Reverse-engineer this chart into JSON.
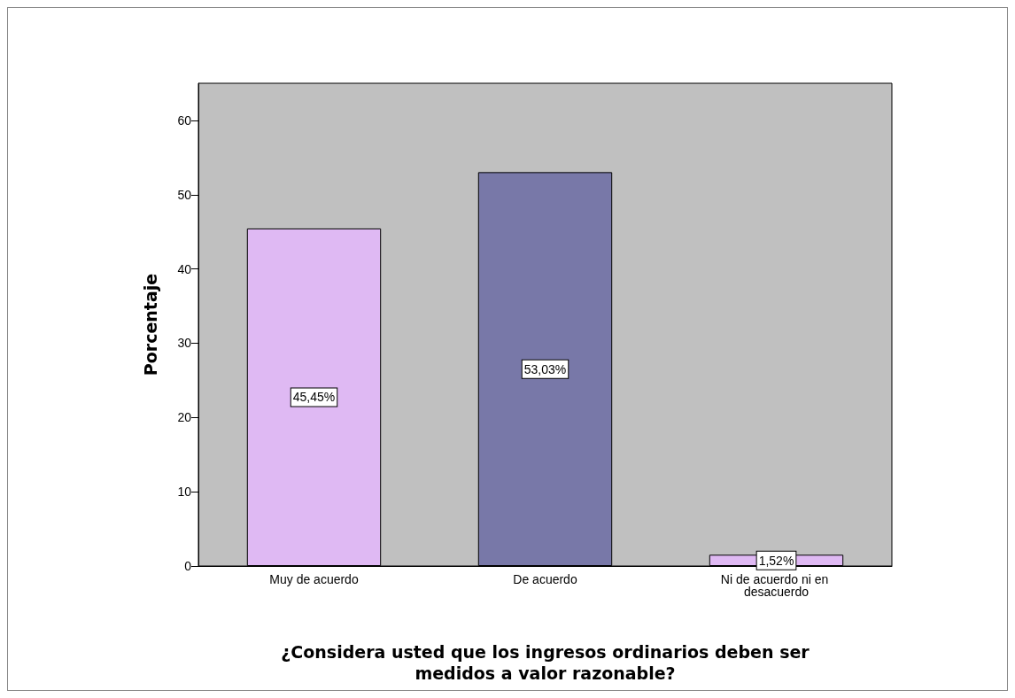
{
  "chart_data": {
    "type": "bar",
    "xlabel": "¿Considera usted que los ingresos ordinarios deben ser\nmedidos a valor razonable?",
    "ylabel": "Porcentaje",
    "categories": [
      "Muy de acuerdo",
      "De acuerdo",
      "Ni de acuerdo ni en desacuerdo"
    ],
    "values": [
      45.45,
      53.03,
      1.52
    ],
    "colors": [
      "#dfb9f3",
      "#7878a8",
      "#dfb9f3"
    ],
    "value_labels": [
      "45,45%",
      "53,03%",
      "1,52%"
    ],
    "ylim": [
      0,
      65
    ],
    "yticks": [
      0,
      10,
      20,
      30,
      40,
      50,
      60
    ],
    "grid": false
  }
}
